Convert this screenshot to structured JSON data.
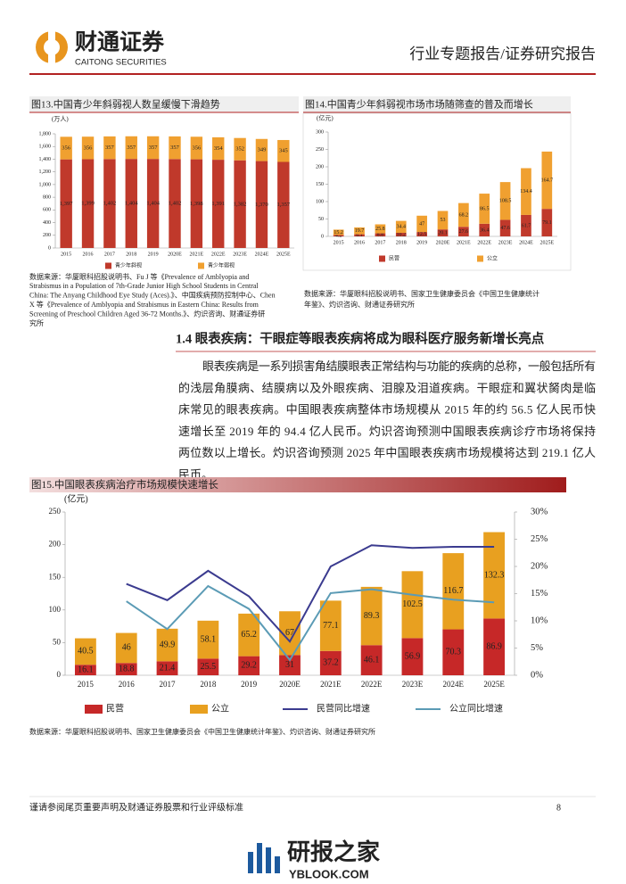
{
  "header": {
    "brand": "财通证券",
    "brand_en": "CAITONG SECURITIES",
    "report_type": "行业专题报告/证券研究报告"
  },
  "chart_data": [
    {
      "type": "bar",
      "stacked": true,
      "title": "图13.中国青少年斜弱视人数呈缓慢下滑趋势",
      "unit": "(万人)",
      "categories": [
        "2015",
        "2016",
        "2017",
        "2018",
        "2019",
        "2020E",
        "2021E",
        "2022E",
        "2023E",
        "2024E",
        "2025E"
      ],
      "series": [
        {
          "name": "青少年斜视",
          "color": "#c0392b",
          "values": [
            1397,
            1399,
            1402,
            1404,
            1404,
            1402,
            1398,
            1391,
            1382,
            1370,
            1357
          ],
          "value_labels": [
            "1,397",
            "1,399",
            "1,402",
            "1,404",
            "1,404",
            "1,402",
            "1,398",
            "1,391",
            "1,382",
            "1,370",
            "1,357"
          ]
        },
        {
          "name": "青少年弱视",
          "color": "#f0a030",
          "values": [
            356,
            356,
            357,
            357,
            357,
            357,
            356,
            354,
            352,
            349,
            345
          ]
        }
      ],
      "ylim": [
        0,
        1800
      ],
      "yticks": [
        0,
        200,
        400,
        600,
        800,
        {
          "value": 1000,
          "label": "1,000"
        },
        {
          "value": 1200,
          "label": "1,200"
        },
        {
          "value": 1400,
          "label": "1,400"
        },
        {
          "value": 1600,
          "label": "1,600"
        },
        {
          "value": 1800,
          "label": "1,800"
        }
      ],
      "source": [
        "数据来源：华厦眼科招股说明书、Fu J 等《Prevalence of Amblyopia and",
        "Strabismus in a Population of 7th-Grade Junior High School Students in Central",
        "China: The Anyang Childhood Eye Study (Aces).》、中国疾病预防控制中心、Chen",
        "X 等《Prevalence of Amblyopia and Strabismus in Eastern China: Results from",
        "Screening of Preschool Children Aged 36-72 Months.》、灼识咨询、财通证券研",
        "究所"
      ]
    },
    {
      "type": "bar",
      "stacked": true,
      "title": "图14.中国青少年斜弱视市场市场随筛查的普及而增长",
      "unit": "(亿元)",
      "categories": [
        "2015",
        "2016",
        "2017",
        "2018",
        "2019",
        "2020E",
        "2021E",
        "2022E",
        "2023E",
        "2024E",
        "2025E"
      ],
      "series": [
        {
          "name": "民营",
          "color": "#c0392b",
          "values": [
            4.2,
            6.1,
            8.8,
            10.2,
            12.5,
            20.1,
            27.6,
            36.4,
            47.6,
            61.7,
            79.1
          ]
        },
        {
          "name": "公立",
          "color": "#f0a030",
          "values": [
            15.2,
            19.7,
            25.8,
            34.4,
            47,
            53,
            68.2,
            86.5,
            108.5,
            134.4,
            164.7
          ]
        }
      ],
      "ylim": [
        0,
        300
      ],
      "yticks": [
        0,
        50,
        100,
        150,
        200,
        250,
        300
      ],
      "source": [
        "数据来源：华厦眼科招股说明书、国家卫生健康委员会《中国卫生健康统计",
        "年鉴》、灼识咨询、财通证券研究所"
      ]
    },
    {
      "type": "bar",
      "stacked": true,
      "title": "图15.中国眼表疾病治疗市场规模快速增长",
      "unit": "(亿元)",
      "categories": [
        "2015",
        "2016",
        "2017",
        "2018",
        "2019",
        "2020E",
        "2021E",
        "2022E",
        "2023E",
        "2024E",
        "2025E"
      ],
      "series": [
        {
          "name": "民营",
          "color": "#c62828",
          "values": [
            16.1,
            18.8,
            21.4,
            25.5,
            29.2,
            31,
            37.2,
            46.1,
            56.9,
            70.3,
            86.9
          ]
        },
        {
          "name": "公立",
          "color": "#e8a020",
          "values": [
            40.5,
            46,
            49.9,
            58.1,
            65.2,
            67,
            77.1,
            89.3,
            102.5,
            116.7,
            132.3
          ]
        },
        {
          "name": "民营同比增速",
          "color": "#3b3b8f",
          "axis": "y2",
          "values": [
            null,
            16.8,
            13.8,
            19.2,
            14.5,
            6.2,
            20,
            23.9,
            23.4,
            23.6,
            23.6
          ]
        },
        {
          "name": "公立同比增速",
          "color": "#5b9bb5",
          "axis": "y2",
          "values": [
            null,
            13.6,
            8.5,
            16.4,
            12.2,
            2.8,
            15.1,
            15.8,
            14.8,
            13.9,
            13.4
          ]
        }
      ],
      "ylim": [
        0,
        250
      ],
      "yticks": [
        0,
        50,
        100,
        150,
        200,
        250
      ],
      "y2lim": [
        0,
        30
      ],
      "y2ticks": [
        {
          "value": 0,
          "label": "0%"
        },
        {
          "value": 5,
          "label": "5%"
        },
        {
          "value": 10,
          "label": "10%"
        },
        {
          "value": 15,
          "label": "15%"
        },
        {
          "value": 20,
          "label": "20%"
        },
        {
          "value": 25,
          "label": "25%"
        },
        {
          "value": 30,
          "label": "30%"
        }
      ],
      "source": [
        "数据来源：华厦眼科招股说明书、国家卫生健康委员会《中国卫生健康统计年鉴》、灼识咨询、财通证券研究所"
      ]
    }
  ],
  "section": {
    "heading": "1.4 眼表疾病：干眼症等眼表疾病将成为眼科医疗服务新增长亮点",
    "paragraph": [
      "眼表疾病是一系列损害角结膜眼表正常结构与功能的疾病的总称，一般包括所有",
      "的浅层角膜病、结膜病以及外眼疾病、泪腺及泪道疾病。干眼症和翼状胬肉是临",
      "床常见的眼表疾病。中国眼表疾病整体市场规模从 2015 年的约 56.5 亿人民币快",
      "速增长至 2019 年的 94.4 亿人民币。灼识咨询预测中国眼表疾病诊疗市场将保持",
      "两位数以上增长。灼识咨询预测 2025 年中国眼表疾病市场规模将达到 219.1 亿人",
      "民币。"
    ]
  },
  "footer": {
    "disclaimer": "谨请参阅尾页重要声明及财通证券股票和行业评级标准",
    "page": "8"
  },
  "watermark": {
    "name": "研报之家",
    "site": "YBLOOK.COM"
  }
}
